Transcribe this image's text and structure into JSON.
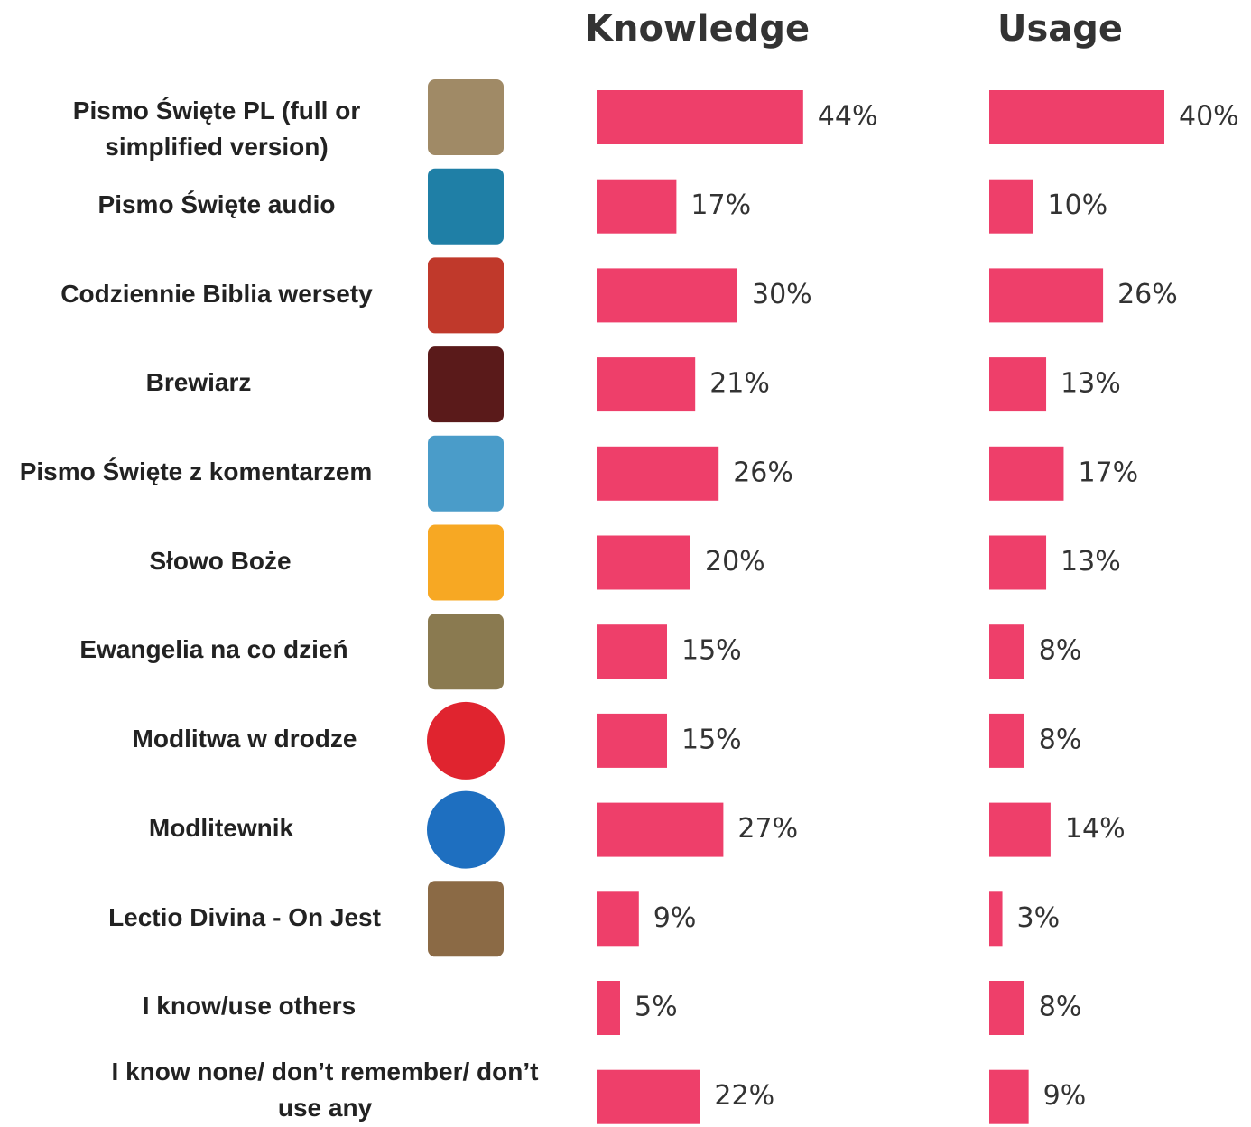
{
  "chart_data": {
    "type": "bar",
    "categories": [
      "Pismo Święte PL (full or simplified version)",
      "Pismo Święte audio",
      "Codziennie Biblia wersety",
      "Brewiarz",
      "Pismo Święte z komentarzem",
      "Słowo Boże",
      "Ewangelia na co dzień",
      "Modlitwa w drodze",
      "Modlitewnik",
      "Lectio Divina - On Jest",
      "I know/use others",
      "I know none/ don’t remember/ don’t use any"
    ],
    "series": [
      {
        "name": "Knowledge",
        "color": "#ee3f6a",
        "values": [
          44,
          17,
          30,
          21,
          26,
          20,
          15,
          15,
          27,
          9,
          5,
          22
        ],
        "value_labels": [
          "44%",
          "17%",
          "30%",
          "21%",
          "26%",
          "20%",
          "15%",
          "15%",
          "27%",
          "9%",
          "5%",
          "22%"
        ]
      },
      {
        "name": "Usage",
        "color": "#ee3f6a",
        "values": [
          40,
          10,
          26,
          13,
          17,
          13,
          8,
          8,
          14,
          3,
          8,
          9
        ],
        "value_labels": [
          "40%",
          "10%",
          "26%",
          "13%",
          "17%",
          "13%",
          "8%",
          "8%",
          "14%",
          "3%",
          "8%",
          "9%"
        ]
      }
    ]
  }
}
